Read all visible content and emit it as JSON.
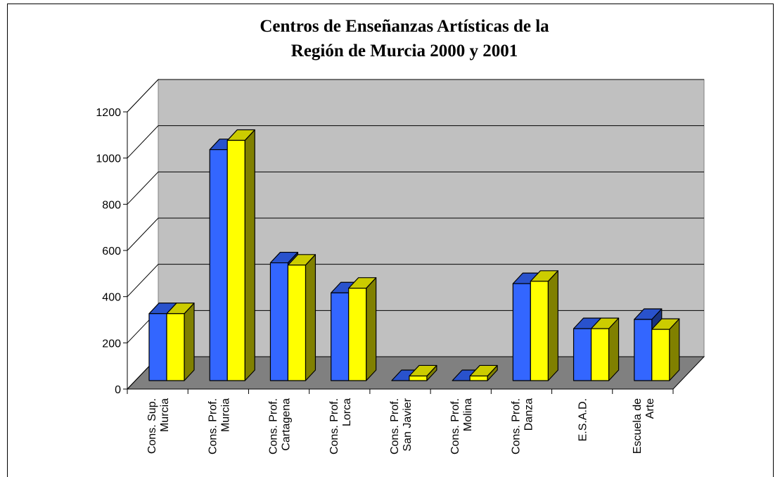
{
  "chart_data": {
    "type": "bar3d",
    "title": "Centros de Enseñanzas Artísticas de la\nRegión de Murcia 2000 y 2001",
    "categories": [
      "Cons. Sup.\nMurcia",
      "Cons. Prof.\nMurcia",
      "Cons. Prof.\nCartagena",
      "Cons. Prof.\nLorca",
      "Cons. Prof.\nSan Javier",
      "Cons. Prof.\nMolina",
      "Cons. Prof.\nDanza",
      "E.S.A.D.",
      "Escuela de\nArte"
    ],
    "series": [
      {
        "color": "#3366ff",
        "values": [
          290,
          1000,
          510,
          380,
          0,
          0,
          420,
          225,
          265
        ]
      },
      {
        "color": "#ffff00",
        "values": [
          290,
          1040,
          500,
          400,
          20,
          20,
          430,
          225,
          222
        ]
      }
    ],
    "ylim": [
      0,
      1200
    ],
    "yticks": [
      0,
      200,
      400,
      600,
      800,
      1000,
      1200
    ],
    "grid": true
  }
}
